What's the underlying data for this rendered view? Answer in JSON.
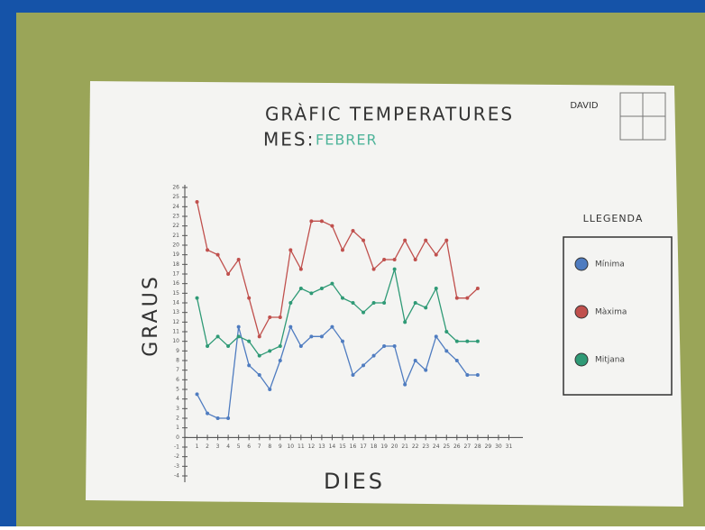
{
  "chart_data": {
    "type": "line",
    "title": "GRÀFIC TEMPERATURES",
    "subtitle": "MES:",
    "month": "FEBRER",
    "author": "DAVID",
    "legend_title": "LLEGENDA",
    "xlabel": "DIES",
    "ylabel": "GRAUS",
    "x": [
      1,
      2,
      3,
      4,
      5,
      6,
      7,
      8,
      9,
      10,
      11,
      12,
      13,
      14,
      15,
      16,
      17,
      18,
      19,
      20,
      21,
      22,
      23,
      24,
      25,
      26,
      27,
      28
    ],
    "xlim": [
      0,
      32
    ],
    "xticks": [
      1,
      2,
      3,
      4,
      5,
      6,
      7,
      8,
      9,
      10,
      11,
      12,
      13,
      14,
      15,
      16,
      17,
      18,
      19,
      20,
      21,
      22,
      23,
      24,
      25,
      26,
      27,
      28,
      29,
      30,
      31
    ],
    "ylim": [
      -4,
      26
    ],
    "yticks": [
      -4,
      -3,
      -2,
      -1,
      0,
      1,
      2,
      3,
      4,
      5,
      6,
      7,
      8,
      9,
      10,
      11,
      12,
      13,
      14,
      15,
      16,
      17,
      18,
      19,
      20,
      21,
      22,
      23,
      24,
      25,
      26
    ],
    "series": [
      {
        "name": "Mínima",
        "color": "#4f7cc0",
        "values": [
          4.5,
          2.5,
          2,
          2,
          11.5,
          7.5,
          6.5,
          5,
          8,
          11.5,
          9.5,
          10.5,
          10.5,
          11.5,
          10,
          6.5,
          7.5,
          8.5,
          9.5,
          9.5,
          5.5,
          8,
          7,
          10.5,
          9,
          8,
          6.5,
          6.5
        ]
      },
      {
        "name": "Màxima",
        "color": "#c0504d",
        "values": [
          24.5,
          19.5,
          19,
          17,
          18.5,
          14.5,
          10.5,
          12.5,
          12.5,
          19.5,
          17.5,
          22.5,
          22.5,
          22,
          19.5,
          21.5,
          20.5,
          17.5,
          18.5,
          18.5,
          20.5,
          18.5,
          20.5,
          19,
          20.5,
          14.5,
          14.5,
          15.5
        ]
      },
      {
        "name": "Mitjana",
        "color": "#2f9a76",
        "values": [
          14.5,
          9.5,
          10.5,
          9.5,
          10.5,
          10,
          8.5,
          9,
          9.5,
          14,
          15.5,
          15,
          15.5,
          16,
          14.5,
          14,
          13,
          14,
          14,
          17.5,
          12,
          14,
          13.5,
          15.5,
          11,
          10,
          10,
          10
        ]
      }
    ]
  }
}
